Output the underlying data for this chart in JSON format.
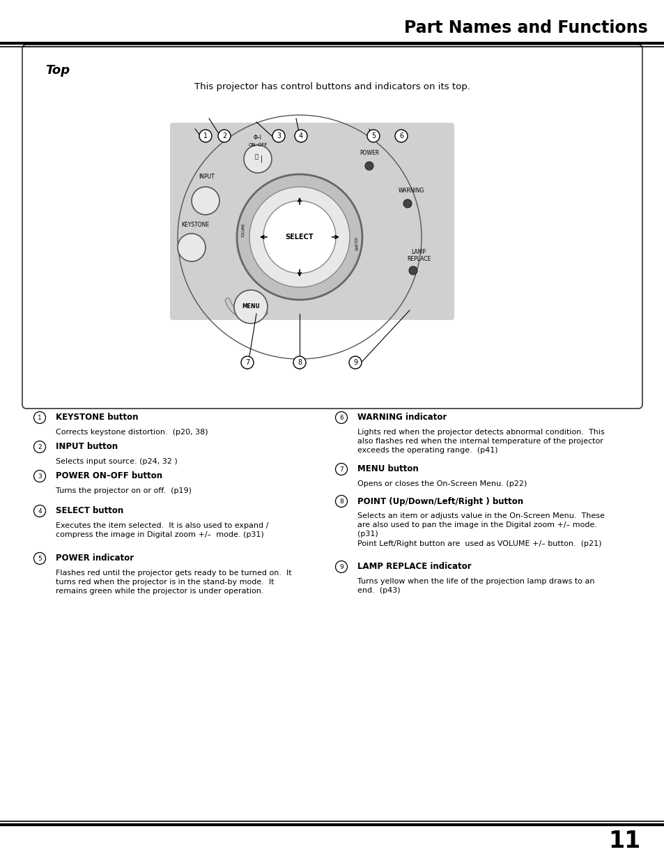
{
  "title": "Part Names and Functions",
  "page_number": "11",
  "section_title": "Top",
  "intro_text": "This projector has control buttons and indicators on its top.",
  "bg_color": "#ffffff",
  "items_left": [
    {
      "num": "1",
      "bold": "KEYSTONE button",
      "text": "Corrects keystone distortion.  (p20, 38)"
    },
    {
      "num": "2",
      "bold": "INPUT button",
      "text": "Selects input source. (p24, 32 )"
    },
    {
      "num": "3",
      "bold": "POWER ON–OFF button",
      "text": "Turns the projector on or off.  (p19)"
    },
    {
      "num": "4",
      "bold": "SELECT button",
      "text": "Executes the item selected.  It is also used to expand /\ncompress the image in Digital zoom +/–  mode. (p31)"
    },
    {
      "num": "5",
      "bold": "POWER indicator",
      "text": "Flashes red until the projector gets ready to be turned on.  It\nturns red when the projector is in the stand-by mode.  It\nremains green while the projector is under operation."
    }
  ],
  "items_right": [
    {
      "num": "6",
      "bold": "WARNING indicator",
      "text": "Lights red when the projector detects abnormal condition.  This\nalso flashes red when the internal temperature of the projector\nexceeds the operating range.  (p41)"
    },
    {
      "num": "7",
      "bold": "MENU button",
      "text": "Opens or closes the On-Screen Menu. (p22)"
    },
    {
      "num": "8",
      "bold": "POINT (Up/Down/Left/Right ) button",
      "text": "Selects an item or adjusts value in the On-Screen Menu.  These\nare also used to pan the image in the Digital zoom +/– mode.\n(p31)\nPoint Left/Right button are  used as VOLUME +/– button.  (p21)"
    },
    {
      "num": "9",
      "bold": "LAMP REPLACE indicator",
      "text": "Turns yellow when the life of the projection lamp draws to an\nend.  (p43)"
    }
  ]
}
